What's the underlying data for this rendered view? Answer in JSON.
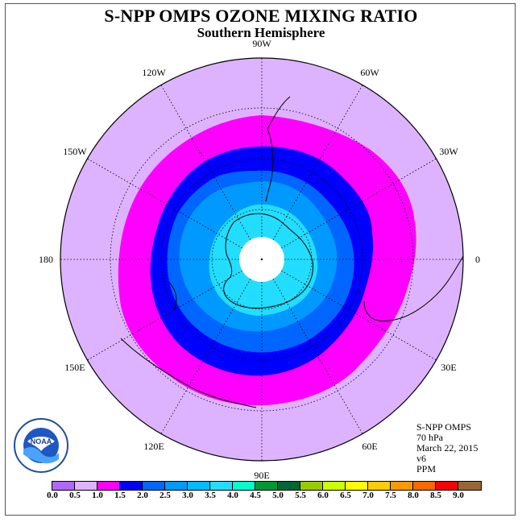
{
  "title": "S-NPP OMPS OZONE MIXING RATIO",
  "subtitle": "Southern Hemisphere",
  "longitude_labels": [
    {
      "text": "90W",
      "lon": -90
    },
    {
      "text": "60W",
      "lon": -60
    },
    {
      "text": "30W",
      "lon": -30
    },
    {
      "text": "0",
      "lon": 0
    },
    {
      "text": "30E",
      "lon": 30
    },
    {
      "text": "60E",
      "lon": 60
    },
    {
      "text": "90E",
      "lon": 90
    },
    {
      "text": "120E",
      "lon": 120
    },
    {
      "text": "150E",
      "lon": 150
    },
    {
      "text": "180",
      "lon": 180
    },
    {
      "text": "150W",
      "lon": -150
    },
    {
      "text": "120W",
      "lon": -120
    }
  ],
  "info": {
    "instrument": "S-NPP OMPS",
    "level": "70 hPa",
    "date": "March 22, 2015",
    "version": "v6",
    "units": "PPM"
  },
  "legend": {
    "colors": [
      "#b366ff",
      "#ddb3ff",
      "#ff00ff",
      "#0000ff",
      "#0066ff",
      "#0099ff",
      "#00bbff",
      "#22ddff",
      "#00ffcc",
      "#009933",
      "#006633",
      "#99cc00",
      "#ccff00",
      "#ffff00",
      "#ffcc00",
      "#ff9900",
      "#ff6600",
      "#ff0000",
      "#996633"
    ],
    "ticks": [
      "0.0",
      "0.5",
      "1.0",
      "1.5",
      "2.0",
      "2.5",
      "3.0",
      "3.5",
      "4.0",
      "4.5",
      "5.0",
      "5.5",
      "6.0",
      "6.5",
      "7.0",
      "7.5",
      "8.0",
      "8.5",
      "9.0"
    ]
  },
  "contour_fills": [
    "#ddb3ff",
    "#ff00ff",
    "#0000ff",
    "#0066ff",
    "#0099ff",
    "#22ddff",
    "#ffffff"
  ],
  "logo_text": "NOAA"
}
